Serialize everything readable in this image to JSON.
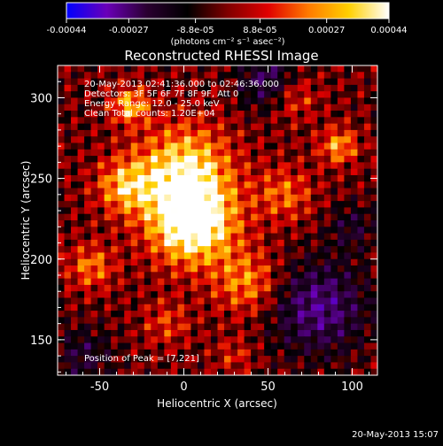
{
  "colorbar": {
    "tick_labels": [
      "-0.00044",
      "-0.00027",
      "-8.8e-05",
      "8.8e-05",
      "0.00027",
      "0.00044"
    ],
    "tick_values": [
      -0.00044,
      -0.00027,
      -8.8e-05,
      8.8e-05,
      0.00027,
      0.00044
    ],
    "range": [
      -0.00044,
      0.00044
    ],
    "unit_label": "(photons cm⁻² s⁻¹ asec⁻²)",
    "colors": [
      "#0000ff",
      "#6a00b8",
      "#2a0030",
      "#000000",
      "#800000",
      "#e00000",
      "#ff7a00",
      "#ffd000",
      "#ffffff"
    ]
  },
  "chart_data": {
    "type": "heatmap",
    "title": "Reconstructed RHESSI Image",
    "xlabel": "Heliocentric X (arcsec)",
    "ylabel": "Heliocentric Y (arcsec)",
    "xlim": [
      -75,
      115
    ],
    "ylim": [
      128,
      320
    ],
    "x_ticks": [
      -50,
      0,
      50,
      100
    ],
    "y_ticks": [
      150,
      200,
      250,
      300
    ],
    "annotations": [
      "20-May-2013 02:41:36.000 to 02:46:36.000",
      "Detectors: 3F 5F 6F 7F 8F 9F, Att 0",
      "Energy Range: 12.0 - 25.0 keV",
      "Clean     Total counts: 1.20E+04"
    ],
    "peak_label": "Position of Peak = [7,221]",
    "peak": [
      7,
      221
    ],
    "sources": [
      {
        "x": 5,
        "y": 222,
        "amp": 1.0,
        "sigma": 18
      },
      {
        "x": 0,
        "y": 255,
        "amp": 0.75,
        "sigma": 20
      },
      {
        "x": -35,
        "y": 245,
        "amp": 0.55,
        "sigma": 12
      },
      {
        "x": -32,
        "y": 295,
        "amp": 0.6,
        "sigma": 8
      },
      {
        "x": 92,
        "y": 270,
        "amp": 0.55,
        "sigma": 8
      },
      {
        "x": 38,
        "y": 185,
        "amp": 0.5,
        "sigma": 14
      },
      {
        "x": -55,
        "y": 195,
        "amp": 0.45,
        "sigma": 10
      },
      {
        "x": 60,
        "y": 240,
        "amp": 0.4,
        "sigma": 12
      },
      {
        "x": 65,
        "y": 300,
        "amp": 0.35,
        "sigma": 10
      },
      {
        "x": -10,
        "y": 160,
        "amp": 0.3,
        "sigma": 10
      },
      {
        "x": 30,
        "y": 140,
        "amp": 0.25,
        "sigma": 8
      },
      {
        "x": 80,
        "y": 170,
        "amp": -0.6,
        "sigma": 20
      },
      {
        "x": 50,
        "y": 310,
        "amp": -0.5,
        "sigma": 12
      },
      {
        "x": -60,
        "y": 140,
        "amp": -0.35,
        "sigma": 12
      },
      {
        "x": 100,
        "y": 220,
        "amp": -0.3,
        "sigma": 10
      }
    ]
  },
  "footer": {
    "timestamp": "20-May-2013 15:07"
  }
}
